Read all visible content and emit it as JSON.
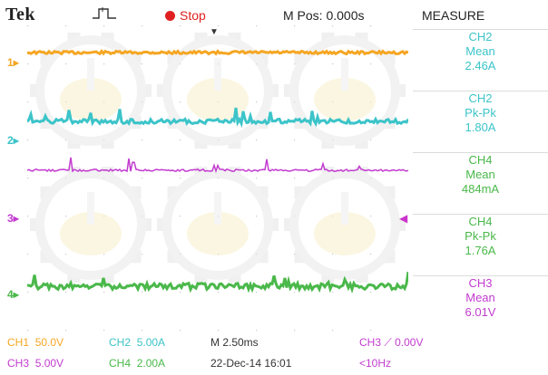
{
  "header": {
    "brand": "Tek",
    "trigger_icon": "trigger-pulse-icon",
    "run_status": "Stop",
    "run_color": "#e02020",
    "mpos": "M Pos: 0.000s",
    "measure_title": "MEASURE"
  },
  "channels": [
    {
      "marker": "1",
      "color": "#f5a623"
    },
    {
      "marker": "2",
      "color": "#3cc4c9"
    },
    {
      "marker": "3",
      "color": "#c23bcf"
    },
    {
      "marker": "4",
      "color": "#4ab84a"
    }
  ],
  "measurements": [
    {
      "channel": "CH2",
      "type": "Mean",
      "value": "2.46A",
      "color": "#3cc4c9"
    },
    {
      "channel": "CH2",
      "type": "Pk-Pk",
      "value": "1.80A",
      "color": "#3cc4c9"
    },
    {
      "channel": "CH4",
      "type": "Mean",
      "value": "484mA",
      "color": "#4ab84a"
    },
    {
      "channel": "CH4",
      "type": "Pk-Pk",
      "value": "1.76A",
      "color": "#4ab84a"
    },
    {
      "channel": "CH3",
      "type": "Mean",
      "value": "6.01V",
      "color": "#c23bcf"
    }
  ],
  "status": {
    "ch1_label": "CH1",
    "ch1_scale": "50.0V",
    "ch2_label": "CH2",
    "ch2_scale": "5.00A",
    "ch3_label": "CH3",
    "ch3_scale": "5.00V",
    "ch4_label": "CH4",
    "ch4_scale": "2.00A",
    "timebase": "M 2.50ms",
    "date": "22-Dec-14 16:01",
    "trigger_source": "CH3",
    "trigger_level": "0.00V",
    "frequency": "<10Hz"
  }
}
